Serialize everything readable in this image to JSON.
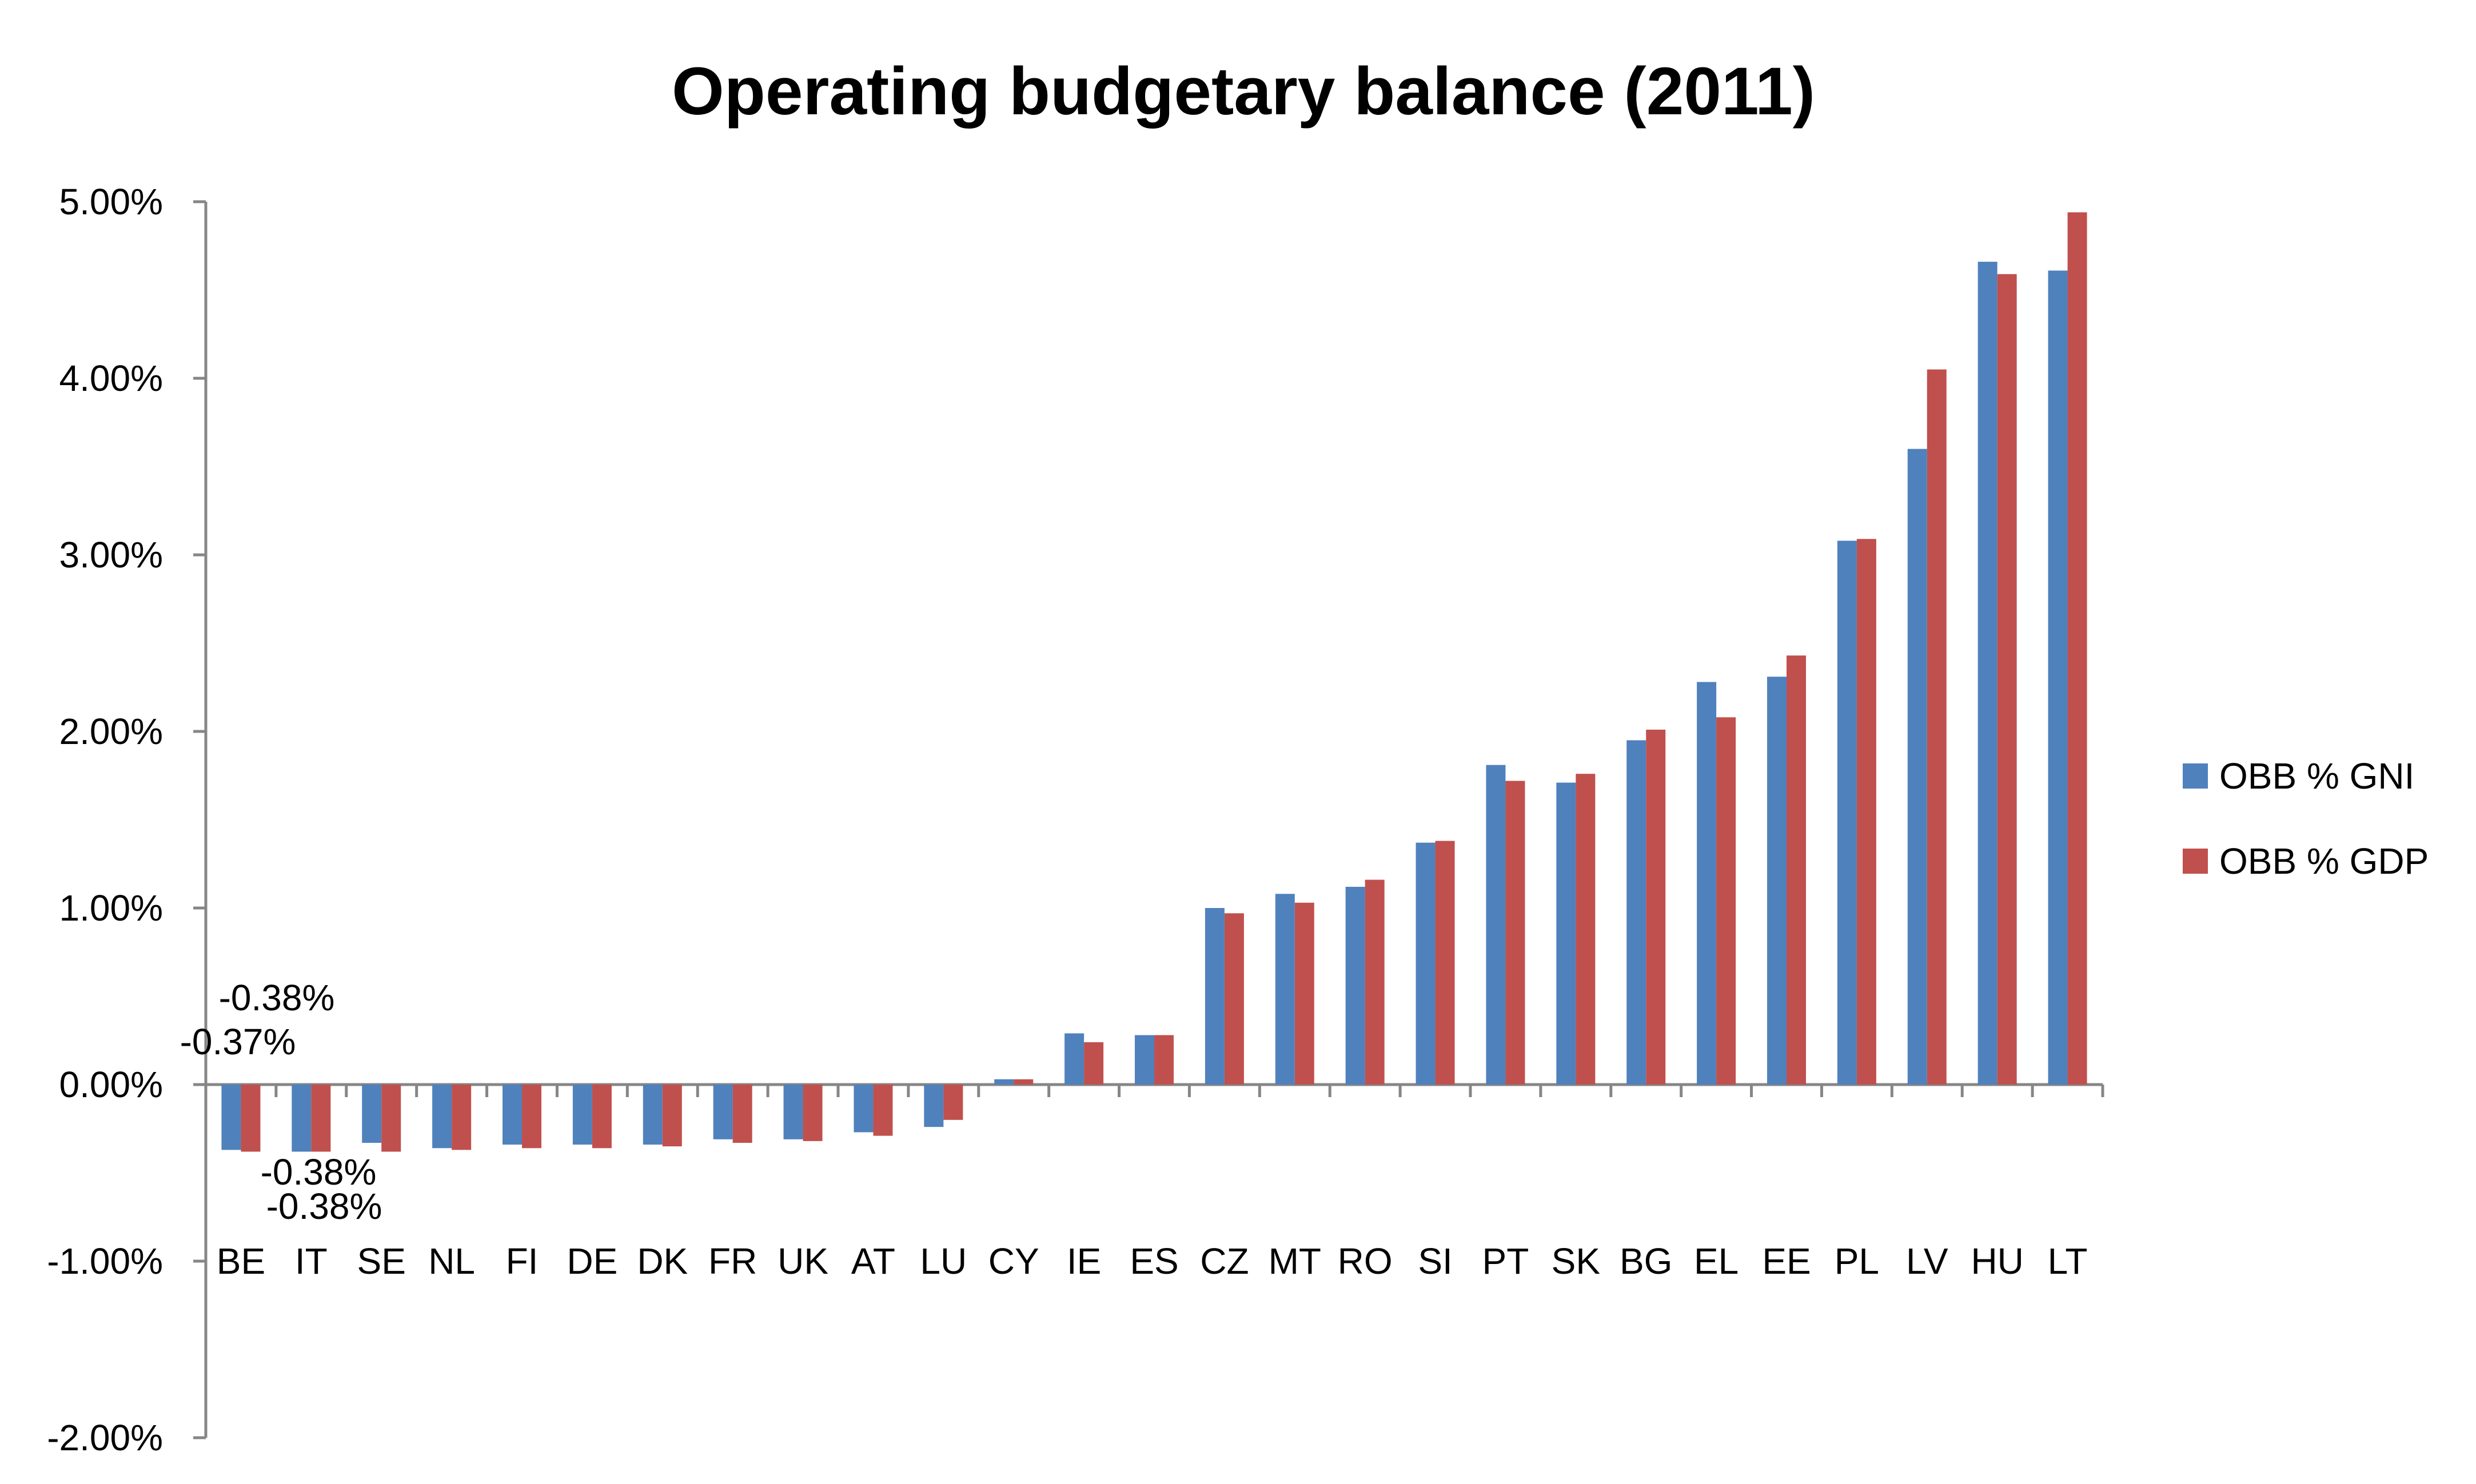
{
  "chart_data": {
    "type": "bar",
    "title": "Operating budgetary balance (2011)",
    "xlabel": "",
    "ylabel": "",
    "ylim": [
      -0.02,
      0.05
    ],
    "y_ticks": [
      {
        "value": 0.05,
        "label": "5.00%"
      },
      {
        "value": 0.04,
        "label": "4.00%"
      },
      {
        "value": 0.03,
        "label": "3.00%"
      },
      {
        "value": 0.02,
        "label": "2.00%"
      },
      {
        "value": 0.01,
        "label": "1.00%"
      },
      {
        "value": 0.0,
        "label": "0.00%"
      },
      {
        "value": -0.01,
        "label": "-1.00%"
      },
      {
        "value": -0.02,
        "label": "-2.00%"
      }
    ],
    "categories": [
      "BE",
      "IT",
      "SE",
      "NL",
      "FI",
      "DE",
      "DK",
      "FR",
      "UK",
      "AT",
      "LU",
      "CY",
      "IE",
      "ES",
      "CZ",
      "MT",
      "RO",
      "SI",
      "PT",
      "SK",
      "BG",
      "EL",
      "EE",
      "PL",
      "LV",
      "HU",
      "LT"
    ],
    "series": [
      {
        "name": "OBB % GNI",
        "color": "#4F81BD",
        "values": [
          -0.0037,
          -0.0038,
          -0.0033,
          -0.0036,
          -0.0034,
          -0.0034,
          -0.0034,
          -0.0031,
          -0.0031,
          -0.0027,
          -0.0024,
          0.0003,
          0.0029,
          0.0028,
          0.01,
          0.0108,
          0.0112,
          0.0137,
          0.0181,
          0.0171,
          0.0195,
          0.0228,
          0.0231,
          0.0308,
          0.036,
          0.0466,
          0.0461
        ]
      },
      {
        "name": "OBB % GDP",
        "color": "#C0504D",
        "values": [
          -0.0038,
          -0.0038,
          -0.0038,
          -0.0037,
          -0.0036,
          -0.0036,
          -0.0035,
          -0.0033,
          -0.0032,
          -0.0029,
          -0.002,
          0.0003,
          0.0024,
          0.0028,
          0.0097,
          0.0103,
          0.0116,
          0.0138,
          0.0172,
          0.0176,
          0.0201,
          0.0208,
          0.0243,
          0.0309,
          0.0405,
          0.0459,
          0.0494
        ]
      }
    ],
    "data_labels": [
      {
        "category": "BE",
        "series": "OBB % GDP",
        "text": "-0.38%"
      },
      {
        "category": "BE",
        "series": "OBB % GNI",
        "text": "-0.37%"
      },
      {
        "category": "IT",
        "series": "OBB % GNI",
        "text": "-0.38%"
      },
      {
        "category": "IT",
        "series": "OBB % GDP",
        "text": "-0.38%"
      }
    ],
    "legend": {
      "position": "right",
      "entries": [
        "OBB % GNI",
        "OBB % GDP"
      ]
    }
  }
}
